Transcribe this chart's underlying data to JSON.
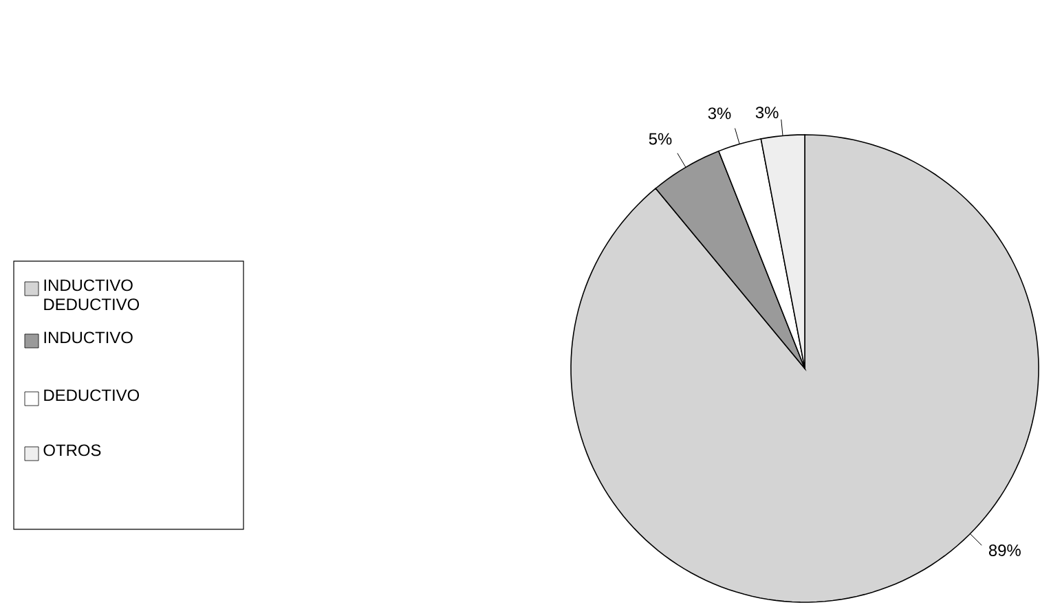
{
  "chart_data": {
    "type": "pie",
    "categories": [
      "INDUCTIVO DEDUCTIVO",
      "INDUCTIVO",
      "DEDUCTIVO",
      "OTROS"
    ],
    "values": [
      89,
      5,
      3,
      3
    ],
    "colors": [
      "#d4d4d4",
      "#9a9a9a",
      "#ffffff",
      "#eeeeee"
    ],
    "legend": "left",
    "value_labels": [
      "89%",
      "5%",
      "3%",
      "3%"
    ]
  }
}
